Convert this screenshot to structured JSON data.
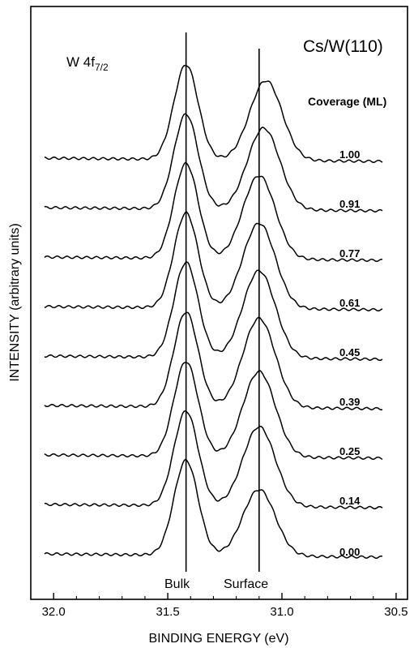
{
  "chart_data": {
    "type": "line",
    "panel_label": {
      "main": "W 4f",
      "sub": "7/2"
    },
    "system_label": "Cs/W(110)",
    "xlabel": "BINDING ENERGY (eV)",
    "ylabel": "INTENSITY (arbitrary units)",
    "xlim": [
      32.1,
      30.45
    ],
    "x_reversed": true,
    "x_ticks": [
      32.0,
      31.5,
      31.0,
      30.5
    ],
    "x_tick_labels": [
      "32.0",
      "31.5",
      "31.0",
      "30.5"
    ],
    "legend_title": "Coverage (ML)",
    "peak_lines": [
      {
        "label": "Bulk",
        "x": 31.42
      },
      {
        "label": "Surface",
        "x": 31.1
      }
    ],
    "series": [
      {
        "name": "0.00",
        "bulk_peak": 31.42,
        "surface_peak": 31.1,
        "bulk_height": 1.0,
        "surface_height": 0.7
      },
      {
        "name": "0.14",
        "bulk_peak": 31.42,
        "surface_peak": 31.1,
        "bulk_height": 1.0,
        "surface_height": 0.84
      },
      {
        "name": "0.25",
        "bulk_peak": 31.42,
        "surface_peak": 31.1,
        "bulk_height": 1.0,
        "surface_height": 0.9
      },
      {
        "name": "0.39",
        "bulk_peak": 31.42,
        "surface_peak": 31.1,
        "bulk_height": 1.0,
        "surface_height": 0.94
      },
      {
        "name": "0.45",
        "bulk_peak": 31.42,
        "surface_peak": 31.1,
        "bulk_height": 1.0,
        "surface_height": 0.92
      },
      {
        "name": "0.61",
        "bulk_peak": 31.42,
        "surface_peak": 31.1,
        "bulk_height": 1.0,
        "surface_height": 0.9
      },
      {
        "name": "0.77",
        "bulk_peak": 31.42,
        "surface_peak": 31.1,
        "bulk_height": 1.0,
        "surface_height": 0.88
      },
      {
        "name": "0.91",
        "bulk_peak": 31.42,
        "surface_peak": 31.08,
        "bulk_height": 1.0,
        "surface_height": 0.86
      },
      {
        "name": "1.00",
        "bulk_peak": 31.42,
        "surface_peak": 31.07,
        "bulk_height": 1.0,
        "surface_height": 0.84
      }
    ]
  }
}
